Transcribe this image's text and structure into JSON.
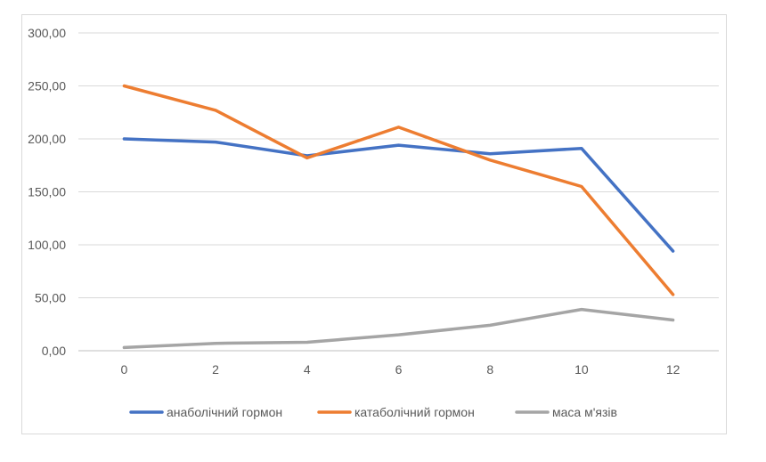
{
  "chart_data": {
    "type": "line",
    "x": [
      0,
      2,
      4,
      6,
      8,
      10,
      12
    ],
    "series": [
      {
        "name": "анаболічний гормон",
        "color": "#4472C4",
        "values": [
          200,
          197,
          184,
          194,
          186,
          191,
          94
        ]
      },
      {
        "name": "катаболічний гормон",
        "color": "#ED7D31",
        "values": [
          250,
          227,
          182,
          211,
          180,
          155,
          53
        ]
      },
      {
        "name": "маса м'язів",
        "color": "#A5A5A5",
        "values": [
          3,
          7,
          8,
          15,
          24,
          39,
          29
        ]
      }
    ],
    "ylim": [
      0,
      300
    ],
    "y_ticks": [
      "0,00",
      "50,00",
      "100,00",
      "150,00",
      "200,00",
      "250,00",
      "300,00"
    ],
    "x_ticks": [
      "0",
      "2",
      "4",
      "6",
      "8",
      "10",
      "12"
    ],
    "grid": true,
    "legend_position": "bottom",
    "gridline_color": "#d9d9d9",
    "axis_color": "#bfbfbf"
  }
}
